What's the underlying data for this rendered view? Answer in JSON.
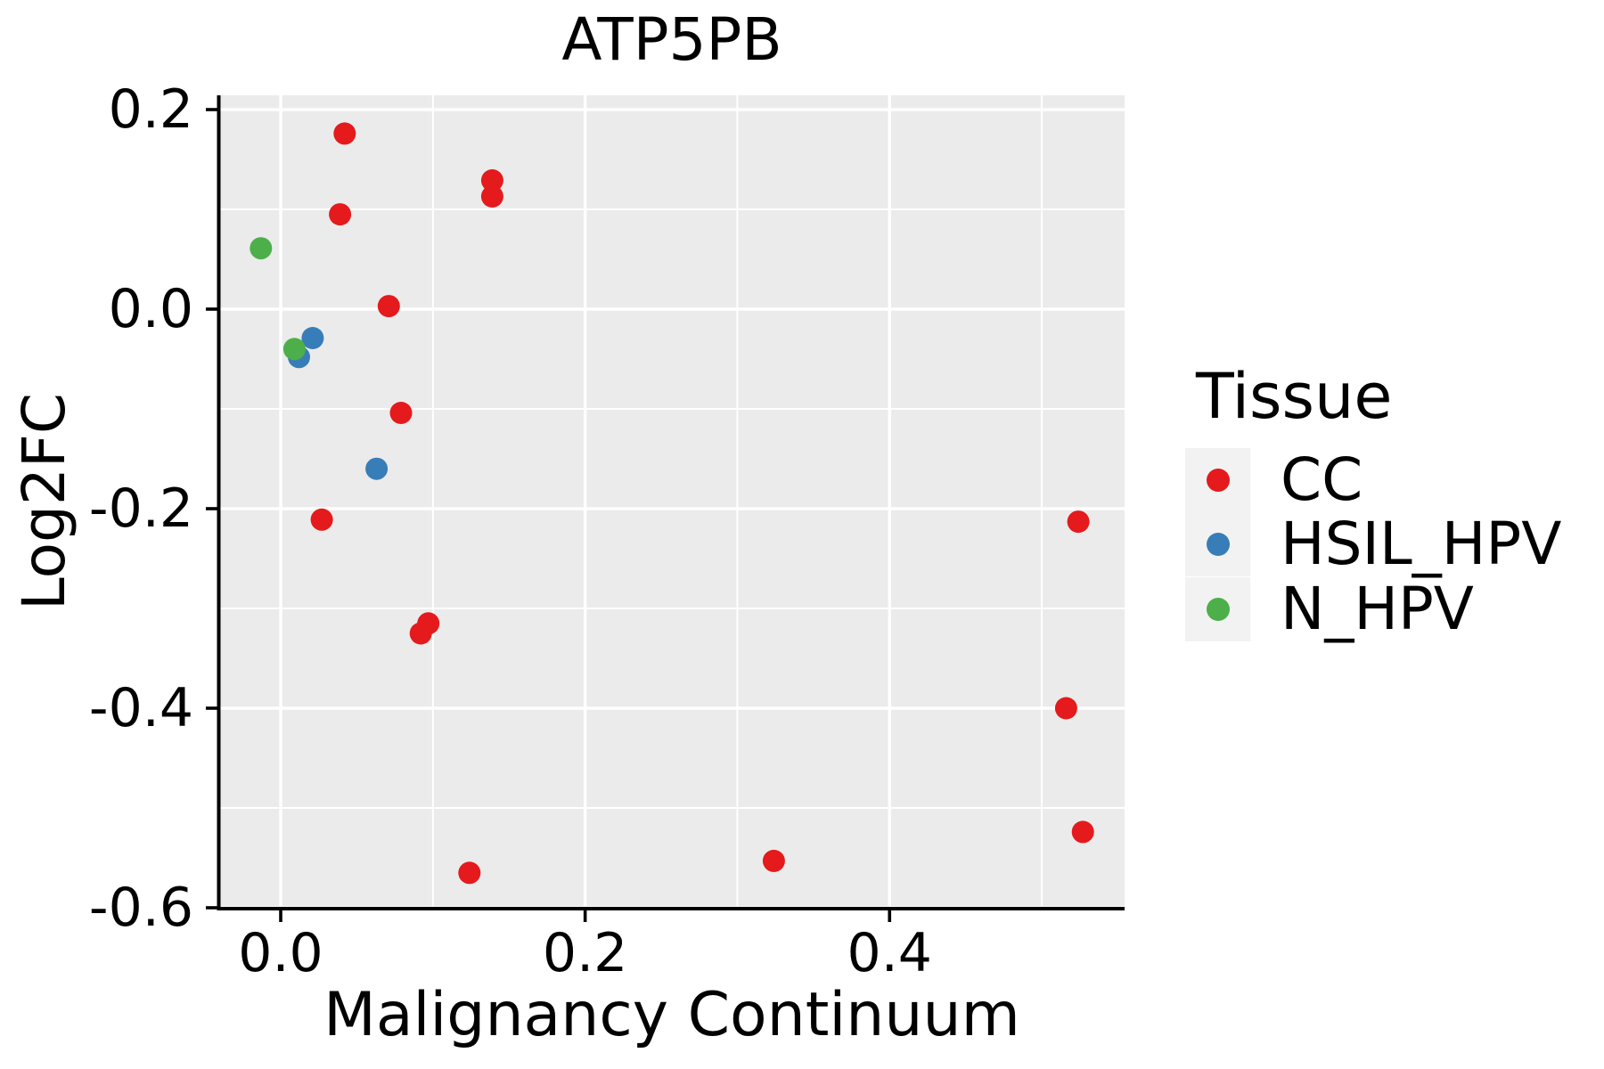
{
  "title": "ATP5PB",
  "axes": {
    "x": {
      "label": "Malignancy Continuum",
      "tick_labels": [
        "0.0",
        "0.2",
        "0.4"
      ],
      "tick_values": [
        0.0,
        0.2,
        0.4
      ],
      "minor_values": [
        0.1,
        0.3,
        0.5
      ]
    },
    "y": {
      "label": "Log2FC",
      "tick_labels": [
        "0.2",
        "0.0",
        "-0.2",
        "-0.4",
        "-0.6"
      ],
      "tick_values": [
        0.2,
        0.0,
        -0.2,
        -0.4,
        -0.6
      ],
      "minor_values": [
        0.1,
        -0.1,
        -0.3,
        -0.5
      ]
    }
  },
  "legend": {
    "title": "Tissue",
    "entries": [
      {
        "label": "CC",
        "color": "#E41A1C"
      },
      {
        "label": "HSIL_HPV",
        "color": "#377EB8"
      },
      {
        "label": "N_HPV",
        "color": "#4DAF4A"
      }
    ]
  },
  "colors": {
    "panel_background": "#EBEBEB",
    "gridline": "#FFFFFF",
    "axis_line": "#000000",
    "text": "#000000",
    "legend_key_background": "#F2F2F2"
  },
  "chart_data": {
    "type": "scatter",
    "title": "ATP5PB",
    "xlabel": "Malignancy Continuum",
    "ylabel": "Log2FC",
    "xlim": [
      -0.0404,
      0.5544
    ],
    "ylim": [
      -0.6009,
      0.2143
    ],
    "x_ticks": [
      0.0,
      0.2,
      0.4
    ],
    "y_ticks": [
      0.2,
      0.0,
      -0.2,
      -0.4,
      -0.6
    ],
    "grid": true,
    "legend_title": "Tissue",
    "legend_position": "right",
    "point_radius_px": 12.5,
    "series": [
      {
        "name": "CC",
        "color": "#E41A1C",
        "points": [
          [
            0.042,
            0.176
          ],
          [
            0.039,
            0.095
          ],
          [
            0.071,
            0.003
          ],
          [
            0.079,
            -0.104
          ],
          [
            0.027,
            -0.211
          ],
          [
            0.139,
            0.129
          ],
          [
            0.139,
            0.113
          ],
          [
            0.097,
            -0.315
          ],
          [
            0.092,
            -0.325
          ],
          [
            0.124,
            -0.565
          ],
          [
            0.324,
            -0.553
          ],
          [
            0.524,
            -0.213
          ],
          [
            0.516,
            -0.4
          ],
          [
            0.527,
            -0.524
          ]
        ]
      },
      {
        "name": "HSIL_HPV",
        "color": "#377EB8",
        "points": [
          [
            0.021,
            -0.029
          ],
          [
            0.012,
            -0.048
          ],
          [
            0.063,
            -0.16
          ]
        ]
      },
      {
        "name": "N_HPV",
        "color": "#4DAF4A",
        "points": [
          [
            -0.013,
            0.061
          ],
          [
            0.009,
            -0.04
          ]
        ]
      }
    ]
  }
}
